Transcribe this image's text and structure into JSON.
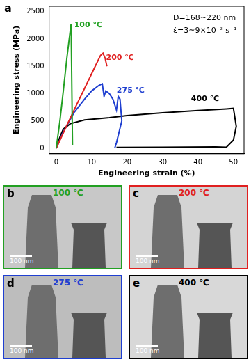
{
  "chart_data": {
    "type": "line",
    "panel": "a",
    "xlabel": "Engineering strain (%)",
    "ylabel": "Engineering stress (MPa)",
    "xlim": [
      -2,
      53
    ],
    "xticks": [
      0,
      10,
      20,
      30,
      40,
      50
    ],
    "ylim": [
      -100,
      2600
    ],
    "yticks": [
      0,
      500,
      1000,
      1500,
      2000,
      2500
    ],
    "grid": false,
    "annotations": [
      {
        "text": "D=168~220 nm",
        "x": 33,
        "y": 2380,
        "color": "#000000"
      },
      {
        "text": "ε̇=3~9×10⁻³ s⁻¹",
        "x": 33,
        "y": 2150,
        "color": "#000000"
      }
    ],
    "series": [
      {
        "name": "100 ℃",
        "color": "#22a022",
        "label_x": 9,
        "label_y": 2250,
        "x": [
          0,
          1,
          2,
          3,
          4.2,
          4.6
        ],
        "values": [
          0,
          480,
          1050,
          1650,
          2280,
          50
        ]
      },
      {
        "name": "200 ℃",
        "color": "#e02020",
        "label_x": 18,
        "label_y": 1650,
        "x": [
          0,
          3,
          6,
          9,
          11,
          12.5,
          13.2,
          13.8,
          14.3
        ],
        "values": [
          0,
          420,
          830,
          1230,
          1500,
          1700,
          1740,
          1650,
          1500
        ]
      },
      {
        "name": "275 ℃",
        "color": "#1f3fd0",
        "label_x": 21,
        "label_y": 1050,
        "x": [
          0,
          2,
          5,
          8,
          10,
          12,
          13,
          13.5,
          14,
          15,
          16,
          17,
          17.5,
          18,
          18.5,
          17,
          16.5
        ],
        "values": [
          0,
          300,
          650,
          900,
          1050,
          1150,
          1180,
          950,
          1050,
          1000,
          900,
          700,
          950,
          900,
          500,
          100,
          0
        ]
      },
      {
        "name": "400 ℃",
        "color": "#000000",
        "label_x": 42,
        "label_y": 900,
        "x": [
          0,
          1,
          2,
          4,
          8,
          15,
          20,
          30,
          40,
          48,
          50,
          50.8,
          50,
          48,
          45,
          30,
          17
        ],
        "values": [
          0,
          200,
          350,
          450,
          520,
          560,
          600,
          650,
          690,
          720,
          730,
          400,
          150,
          20,
          25,
          20,
          15
        ]
      }
    ]
  },
  "image_panels": [
    {
      "letter": "b",
      "label": "100 ℃",
      "color": "#22a022",
      "scale_bar": "100 nm"
    },
    {
      "letter": "c",
      "label": "200 ℃",
      "color": "#e02020",
      "scale_bar": "100 nm"
    },
    {
      "letter": "d",
      "label": "275 ℃",
      "color": "#1f3fd0",
      "scale_bar": "100 nm"
    },
    {
      "letter": "e",
      "label": "400 ℃",
      "color": "#000000",
      "scale_bar": "100 nm"
    }
  ]
}
